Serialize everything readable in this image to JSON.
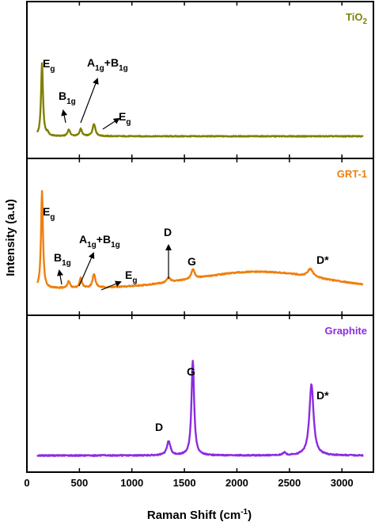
{
  "chart_data": {
    "type": "line",
    "xlabel": "Raman Shift (cm-1)",
    "xlabel_main": "Raman Shift (cm",
    "xlabel_sup": "-1",
    "xlabel_end": ")",
    "ylabel": "Intensity (a.u)",
    "xlim": [
      0,
      3300
    ],
    "xticks": [
      0,
      500,
      1000,
      1500,
      2000,
      2500,
      3000
    ],
    "series": [
      {
        "name": "TiO2",
        "label_main": "TiO",
        "label_sub": "2",
        "color": "#808000",
        "baseline": 0.035,
        "peaks": [
          [
            144,
            1.0,
            11
          ],
          [
            197,
            0.04,
            12
          ],
          [
            399,
            0.09,
            14
          ],
          [
            513,
            0.1,
            14
          ],
          [
            639,
            0.17,
            16
          ]
        ]
      },
      {
        "name": "GRT-1",
        "color": "#f07f0c",
        "baseline": 0.06,
        "hump": [
          2200,
          0.17,
          850
        ],
        "peaks": [
          [
            144,
            1.0,
            11
          ],
          [
            399,
            0.07,
            14
          ],
          [
            513,
            0.1,
            14
          ],
          [
            639,
            0.14,
            16
          ],
          [
            1350,
            0.05,
            20
          ],
          [
            1582,
            0.1,
            18
          ],
          [
            2700,
            0.08,
            30
          ]
        ]
      },
      {
        "name": "Graphite",
        "color": "#8b2be2",
        "baseline": 0.02,
        "peaks": [
          [
            1350,
            0.15,
            20
          ],
          [
            1580,
            1.0,
            15
          ],
          [
            2450,
            0.03,
            15
          ],
          [
            2710,
            0.75,
            24
          ]
        ]
      }
    ],
    "annotations": [
      {
        "panel": 0,
        "text": "E",
        "sub": "g"
      },
      {
        "panel": 0,
        "text": "B",
        "sub": "1g"
      },
      {
        "panel": 0,
        "text": "A",
        "sub": "1g",
        "text2": "+B",
        "sub2": "1g"
      },
      {
        "panel": 0,
        "text": "E",
        "sub": "g"
      },
      {
        "panel": 1,
        "text": "E",
        "sub": "g"
      },
      {
        "panel": 1,
        "text": "B",
        "sub": "1g"
      },
      {
        "panel": 1,
        "text": "A",
        "sub": "1g",
        "text2": "+B",
        "sub2": "1g"
      },
      {
        "panel": 1,
        "text": "E",
        "sub": "g"
      },
      {
        "panel": 1,
        "text": "D"
      },
      {
        "panel": 1,
        "text": "G"
      },
      {
        "panel": 1,
        "text": "D*"
      },
      {
        "panel": 2,
        "text": "D"
      },
      {
        "panel": 2,
        "text": "G"
      },
      {
        "panel": 2,
        "text": "D*"
      }
    ],
    "grid": false
  }
}
